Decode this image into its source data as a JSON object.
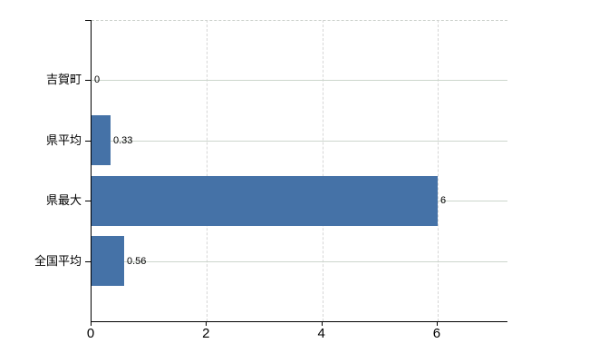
{
  "chart_data": {
    "type": "bar",
    "orientation": "horizontal",
    "title": "",
    "xlabel": "",
    "ylabel": "",
    "categories": [
      "吉賀町",
      "県平均",
      "県最大",
      "全国平均"
    ],
    "values": [
      0,
      0.33,
      6,
      0.56
    ],
    "value_labels": [
      "0",
      "0.33",
      "6",
      "0.56"
    ],
    "xlim": [
      0,
      7.21
    ],
    "xticks": [
      0,
      2,
      4,
      6
    ],
    "xtick_labels": [
      "0",
      "2",
      "4",
      "6"
    ],
    "grid": true,
    "legend": false,
    "colors": {
      "bar": "#4572a7",
      "axis": "#000000",
      "hgrid": "#ccd5cc",
      "vgrid": "#d6d6d6",
      "text": "#000000"
    }
  }
}
